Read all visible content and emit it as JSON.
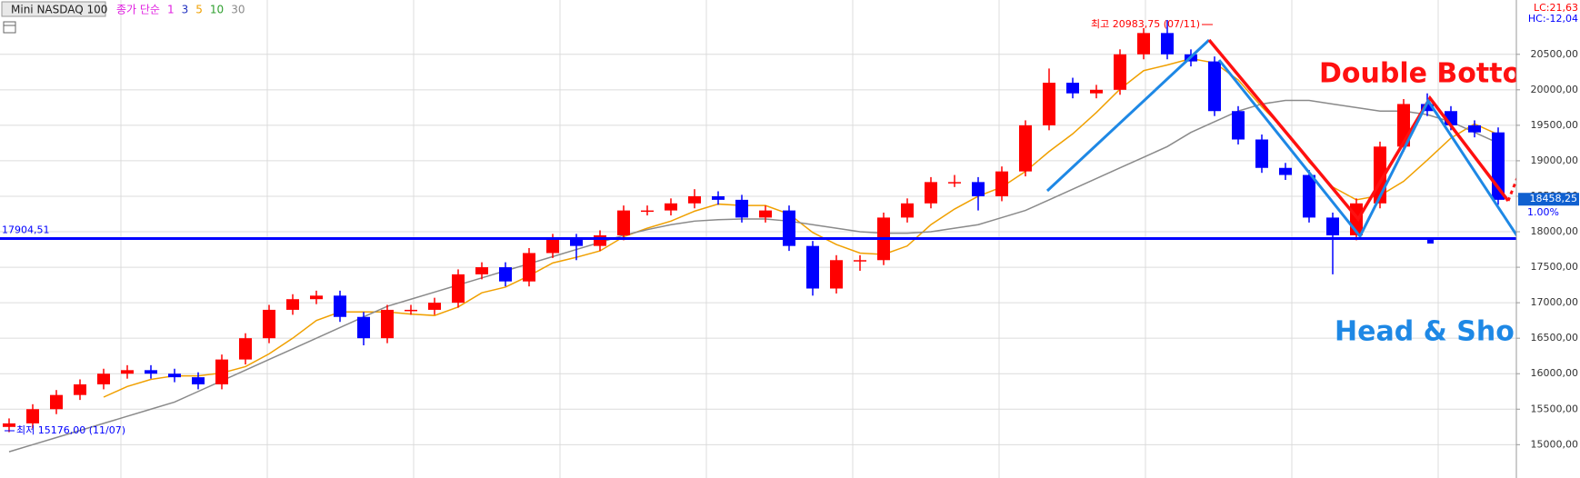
{
  "chart_data": {
    "type": "candlestick",
    "title": "Mini NASDAQ 100",
    "ma_label": "종가 단순",
    "ma_legend": [
      {
        "name": "1",
        "color": "#e020e0"
      },
      {
        "name": "3",
        "color": "#2030c0"
      },
      {
        "name": "5",
        "color": "#f0a000",
        "values": [
          null,
          null,
          null,
          null,
          15670,
          15820,
          15920,
          15970,
          15970,
          16010,
          16100,
          16280,
          16500,
          16750,
          16870,
          16870,
          16870,
          16840,
          16820,
          16940,
          17140,
          17220,
          17380,
          17560,
          17640,
          17730,
          17930,
          18050,
          18150,
          18290,
          18390,
          18370,
          18370,
          18250,
          17990,
          17820,
          17700,
          17680,
          17800,
          18100,
          18320,
          18500,
          18630,
          18850,
          19130,
          19380,
          19680,
          20010,
          20270,
          20350,
          20440,
          20380,
          20140,
          19760,
          19420,
          18980,
          18630,
          18450,
          18510,
          18710,
          19010,
          19320,
          19520,
          19370
        ]
      },
      {
        "name": "10",
        "color": "#30a030"
      },
      {
        "name": "30",
        "color": "#8a8a8a",
        "values": [
          14900,
          15000,
          15100,
          15200,
          15300,
          15400,
          15500,
          15600,
          15750,
          15900,
          16050,
          16200,
          16350,
          16500,
          16650,
          16800,
          16950,
          17050,
          17150,
          17250,
          17350,
          17450,
          17550,
          17650,
          17750,
          17850,
          17950,
          18030,
          18100,
          18150,
          18170,
          18180,
          18180,
          18150,
          18100,
          18050,
          18000,
          17980,
          17980,
          18000,
          18050,
          18100,
          18200,
          18300,
          18450,
          18600,
          18750,
          18900,
          19050,
          19200,
          19400,
          19550,
          19700,
          19800,
          19850,
          19850,
          19800,
          19750,
          19700,
          19700,
          19650,
          19550,
          19400,
          19250
        ]
      }
    ],
    "open": [
      15250,
      15300,
      15500,
      15700,
      15850,
      16000,
      16050,
      16000,
      15950,
      15850,
      16200,
      16500,
      16900,
      17050,
      17100,
      16800,
      16500,
      16900,
      16900,
      17000,
      17400,
      17500,
      17300,
      17700,
      17900,
      17800,
      17950,
      18300,
      18300,
      18400,
      18500,
      18450,
      18200,
      18300,
      17800,
      17200,
      17600,
      17600,
      18200,
      18400,
      18700,
      18700,
      18500,
      18850,
      19500,
      20100,
      19950,
      20000,
      20500,
      20800,
      20500,
      20400,
      19700,
      19300,
      18900,
      18800,
      18200,
      17950,
      18400,
      19200,
      19800,
      19700,
      19500,
      19400
    ],
    "high": [
      15370,
      15570,
      15770,
      15920,
      16070,
      16120,
      16120,
      16070,
      16020,
      16270,
      16570,
      16970,
      17120,
      17170,
      17170,
      16870,
      16970,
      16970,
      17070,
      17470,
      17570,
      17570,
      17770,
      17970,
      17970,
      18020,
      18370,
      18370,
      18470,
      18600,
      18570,
      18520,
      18370,
      18370,
      17870,
      17670,
      17670,
      18270,
      18470,
      18770,
      18800,
      18770,
      18920,
      19570,
      20300,
      20170,
      20070,
      20570,
      20870,
      20983.75,
      20570,
      20470,
      19770,
      19370,
      18970,
      18870,
      18270,
      18470,
      19270,
      19870,
      19950,
      19770,
      19570,
      19470
    ],
    "low": [
      15176,
      15230,
      15430,
      15630,
      15780,
      15930,
      15930,
      15880,
      15780,
      15780,
      16130,
      16430,
      16830,
      16980,
      16730,
      16400,
      16430,
      16830,
      16830,
      16930,
      17330,
      17230,
      17230,
      17630,
      17600,
      17730,
      17880,
      18230,
      18230,
      18330,
      18380,
      18130,
      18130,
      17730,
      17100,
      17130,
      17450,
      17530,
      18130,
      18330,
      18630,
      18300,
      18430,
      18780,
      19430,
      19880,
      19880,
      19930,
      20430,
      20430,
      20330,
      19630,
      19230,
      18830,
      18730,
      18130,
      17400,
      17880,
      18330,
      19130,
      19630,
      19430,
      19330,
      18380
    ],
    "close": [
      15300,
      15500,
      15700,
      15850,
      16000,
      16050,
      16000,
      15950,
      15850,
      16200,
      16500,
      16900,
      17050,
      17100,
      16800,
      16500,
      16900,
      16900,
      17000,
      17400,
      17500,
      17300,
      17700,
      17900,
      17800,
      17950,
      18300,
      18300,
      18400,
      18500,
      18450,
      18200,
      18300,
      17800,
      17200,
      17600,
      17600,
      18200,
      18400,
      18700,
      18700,
      18500,
      18850,
      19500,
      20100,
      19950,
      20000,
      20500,
      20800,
      20500,
      20400,
      19700,
      19300,
      18900,
      18800,
      18200,
      17950,
      18400,
      19200,
      19800,
      19700,
      19500,
      19400,
      18450
    ],
    "up_color": "#ff0000",
    "down_color": "#0000ff",
    "ylim": [
      14556,
      21227
    ],
    "yticks": [
      {
        "value": 15000,
        "label": "15000,00"
      },
      {
        "value": 15500,
        "label": "15500,00"
      },
      {
        "value": 16000,
        "label": "16000,00"
      },
      {
        "value": 16500,
        "label": "16500,00"
      },
      {
        "value": 17000,
        "label": "17000,00"
      },
      {
        "value": 17500,
        "label": "17500,00"
      },
      {
        "value": 18000,
        "label": "18000,00"
      },
      {
        "value": 18500,
        "label": "18500,00"
      },
      {
        "value": 19000,
        "label": "19000,00"
      },
      {
        "value": 19500,
        "label": "19500,00"
      },
      {
        "value": 20000,
        "label": "20000,00"
      },
      {
        "value": 20500,
        "label": "20500,00"
      }
    ],
    "grid": true,
    "level": {
      "value": 17904.51,
      "label": "17904,51",
      "color": "#0000ff"
    },
    "last": {
      "value": 18458.25,
      "label": "18458,25"
    },
    "change_label": "1.00%",
    "lc_label": "LC:21,63",
    "hc_label": "HC:-12,04",
    "high_note": "최고 20983,75 (07/11)",
    "low_note": "최저 15176,00 (11/07)",
    "annotations": [
      "Double Bottom",
      "Head & Shoulder"
    ]
  }
}
